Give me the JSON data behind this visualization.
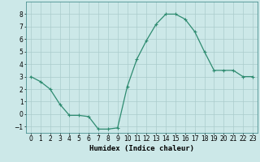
{
  "x": [
    0,
    1,
    2,
    3,
    4,
    5,
    6,
    7,
    8,
    9,
    10,
    11,
    12,
    13,
    14,
    15,
    16,
    17,
    18,
    19,
    20,
    21,
    22,
    23
  ],
  "y": [
    3.0,
    2.6,
    2.0,
    0.8,
    -0.1,
    -0.1,
    -0.2,
    -1.2,
    -1.2,
    -1.1,
    2.2,
    4.4,
    5.9,
    7.2,
    8.0,
    8.0,
    7.6,
    6.6,
    5.0,
    3.5,
    3.5,
    3.5,
    3.0,
    3.0
  ],
  "line_color": "#2e8b70",
  "marker": "+",
  "markersize": 3,
  "linewidth": 0.9,
  "xlabel": "Humidex (Indice chaleur)",
  "xlim": [
    -0.5,
    23.5
  ],
  "ylim": [
    -1.5,
    9.0
  ],
  "yticks": [
    -1,
    0,
    1,
    2,
    3,
    4,
    5,
    6,
    7,
    8
  ],
  "xticks": [
    0,
    1,
    2,
    3,
    4,
    5,
    6,
    7,
    8,
    9,
    10,
    11,
    12,
    13,
    14,
    15,
    16,
    17,
    18,
    19,
    20,
    21,
    22,
    23
  ],
  "bg_color": "#cce8e8",
  "grid_color": "#aacccc",
  "tick_label_fontsize": 5.5,
  "xlabel_fontsize": 6.5
}
